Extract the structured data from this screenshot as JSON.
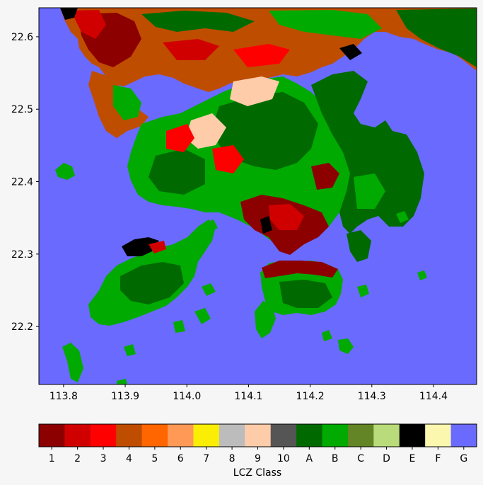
{
  "map": {
    "x_ticks": [
      "113.8",
      "113.9",
      "114.0",
      "114.1",
      "114.2",
      "114.3",
      "114.4"
    ],
    "x_tick_values": [
      113.8,
      113.9,
      114.0,
      114.1,
      114.2,
      114.3,
      114.4
    ],
    "y_ticks": [
      "22.6",
      "22.5",
      "22.4",
      "22.3",
      "22.2"
    ],
    "y_tick_values": [
      22.6,
      22.5,
      22.4,
      22.3,
      22.2
    ],
    "x_range": [
      113.76,
      114.47
    ],
    "y_range": [
      22.12,
      22.64
    ]
  },
  "colorbar": {
    "title": "LCZ Class",
    "classes": [
      {
        "label": "1",
        "color": "#8c0000"
      },
      {
        "label": "2",
        "color": "#d10000"
      },
      {
        "label": "3",
        "color": "#ff0000"
      },
      {
        "label": "4",
        "color": "#bf4d00"
      },
      {
        "label": "5",
        "color": "#ff6600"
      },
      {
        "label": "6",
        "color": "#ff9955"
      },
      {
        "label": "7",
        "color": "#faee05"
      },
      {
        "label": "8",
        "color": "#bcbcbc"
      },
      {
        "label": "9",
        "color": "#ffccaa"
      },
      {
        "label": "10",
        "color": "#555555"
      },
      {
        "label": "A",
        "color": "#006a00"
      },
      {
        "label": "B",
        "color": "#00aa00"
      },
      {
        "label": "C",
        "color": "#648525"
      },
      {
        "label": "D",
        "color": "#b9db79"
      },
      {
        "label": "E",
        "color": "#000000"
      },
      {
        "label": "F",
        "color": "#fbf7ae"
      },
      {
        "label": "G",
        "color": "#6a6aff"
      }
    ]
  }
}
